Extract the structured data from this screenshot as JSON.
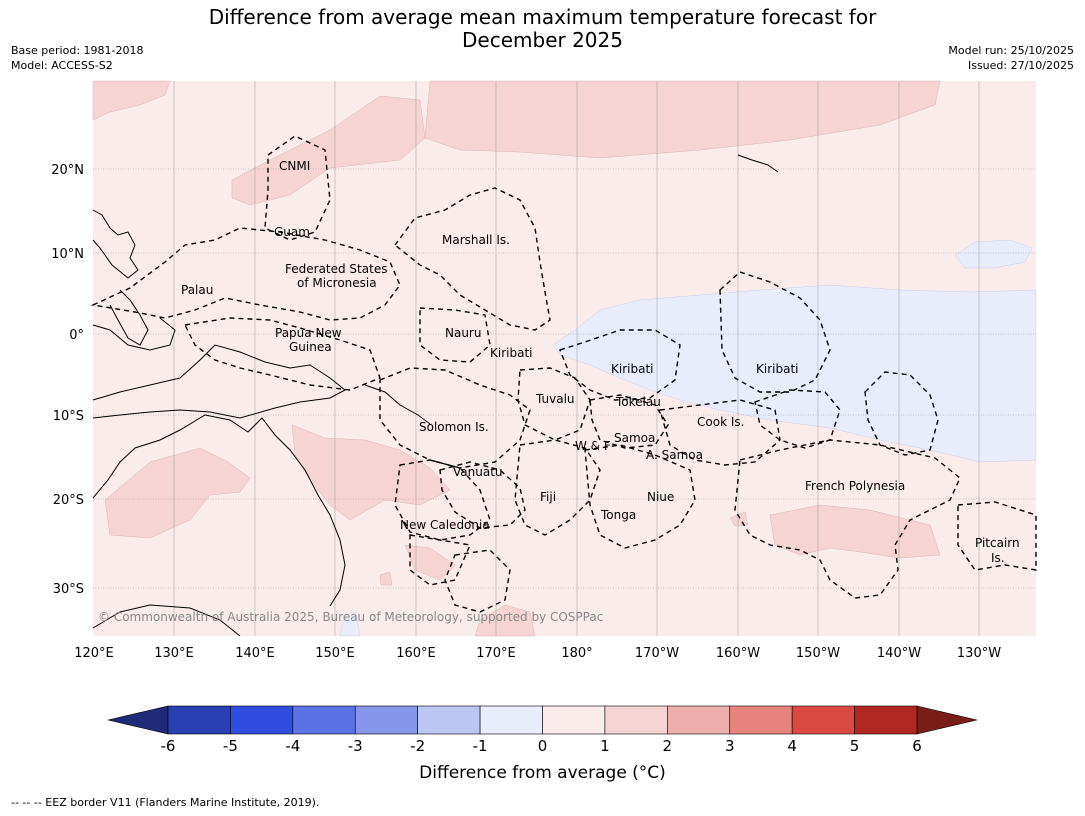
{
  "title_line1": "Difference from average mean maximum temperature forecast for",
  "title_line2": "December 2025",
  "meta_left": {
    "base_period": "Base period: 1981-2018",
    "model": "Model: ACCESS-S2"
  },
  "meta_right": {
    "model_run": "Model run: 25/10/2025",
    "issued": "Issued: 27/10/2025"
  },
  "map": {
    "lat_labels": [
      "20°N",
      "10°N",
      "0°",
      "10°S",
      "20°S",
      "30°S"
    ],
    "lon_labels": [
      "120°E",
      "130°E",
      "140°E",
      "150°E",
      "160°E",
      "170°E",
      "180°",
      "170°W",
      "160°W",
      "150°W",
      "140°W",
      "130°W"
    ],
    "places": {
      "cnmi": "CNMI",
      "guam": "Guam",
      "marshall": "Marshall Is.",
      "fsm_1": "Federated States",
      "fsm_2": "of Micronesia",
      "palau": "Palau",
      "png_1": "Papua New",
      "png_2": "Guinea",
      "nauru": "Nauru",
      "kiribati_w": "Kiribati",
      "kiribati_c": "Kiribati",
      "kiribati_e": "Kiribati",
      "tuvalu": "Tuvalu",
      "tokelau": "Tokelau",
      "cook": "Cook Is.",
      "solomon": "Solomon Is.",
      "samoa": "Samoa",
      "wf": "W & F",
      "asamoa": "A. Samoa",
      "vanuatu": "Vanuatu",
      "fiji": "Fiji",
      "niue": "Niue",
      "french_poly": "French Polynesia",
      "tonga": "Tonga",
      "new_caledonia": "New Caledonia",
      "pitcairn_1": "Pitcairn",
      "pitcairn_2": "Is."
    },
    "copyright": "© Commonwealth of Australia 2025, Bureau of Meteorology, supported by COSPPac"
  },
  "colorbar": {
    "ticks": [
      "-6",
      "-5",
      "-4",
      "-3",
      "-2",
      "-1",
      "0",
      "1",
      "2",
      "3",
      "4",
      "5",
      "6"
    ],
    "colors": [
      "#1e2a78",
      "#2a3fb4",
      "#2f4ee0",
      "#5a72e6",
      "#8596eb",
      "#bcc6f3",
      "#e8ecfb",
      "#fbecec",
      "#f6d4d3",
      "#eeaeab",
      "#e6837e",
      "#db4a42",
      "#b0281f",
      "#7a1c18"
    ],
    "title": "Difference from average (°C)"
  },
  "footnote": "--  --  -- EEZ border V11 (Flanders Marine Institute, 2019)."
}
